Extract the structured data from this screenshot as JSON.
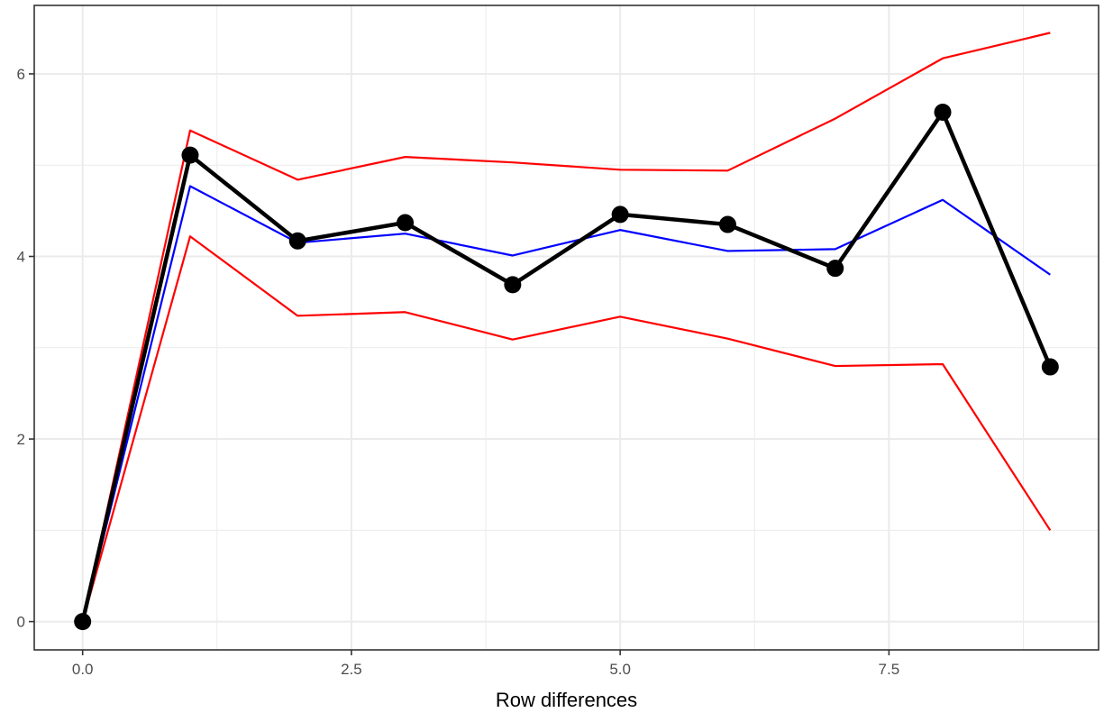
{
  "chart_data": {
    "type": "line",
    "title": "",
    "xlabel": "Row differences",
    "ylabel": "",
    "xlim": [
      -0.45,
      9.45
    ],
    "ylim": [
      -0.31,
      6.75
    ],
    "x_major_ticks": [
      0.0,
      2.5,
      5.0,
      7.5
    ],
    "x_tick_labels": [
      "0.0",
      "2.5",
      "5.0",
      "7.5"
    ],
    "x_minor_ticks": [
      1.25,
      3.75,
      6.25,
      8.75
    ],
    "y_major_ticks": [
      0,
      2,
      4,
      6
    ],
    "y_tick_labels": [
      "0",
      "2",
      "4",
      "6"
    ],
    "y_minor_ticks": [
      1,
      3,
      5
    ],
    "grid": true,
    "theme": "bw",
    "x": [
      0,
      1,
      2,
      3,
      4,
      5,
      6,
      7,
      8,
      9
    ],
    "series": [
      {
        "role": "upper-band",
        "color": "#ff0000",
        "markers": false,
        "values": [
          0.0,
          5.38,
          4.84,
          5.09,
          5.03,
          4.95,
          4.94,
          5.51,
          6.17,
          6.45
        ]
      },
      {
        "role": "lower-band",
        "color": "#ff0000",
        "markers": false,
        "values": [
          0.0,
          4.22,
          3.35,
          3.39,
          3.09,
          3.34,
          3.1,
          2.8,
          2.82,
          1.0
        ]
      },
      {
        "role": "mean",
        "color": "#0000ff",
        "markers": false,
        "values": [
          0.0,
          4.77,
          4.15,
          4.25,
          4.01,
          4.29,
          4.06,
          4.08,
          4.62,
          3.8
        ]
      },
      {
        "role": "observed",
        "color": "#000000",
        "markers": true,
        "values": [
          0.0,
          5.11,
          4.17,
          4.37,
          3.69,
          4.46,
          4.35,
          3.87,
          5.58,
          2.79
        ]
      }
    ]
  }
}
